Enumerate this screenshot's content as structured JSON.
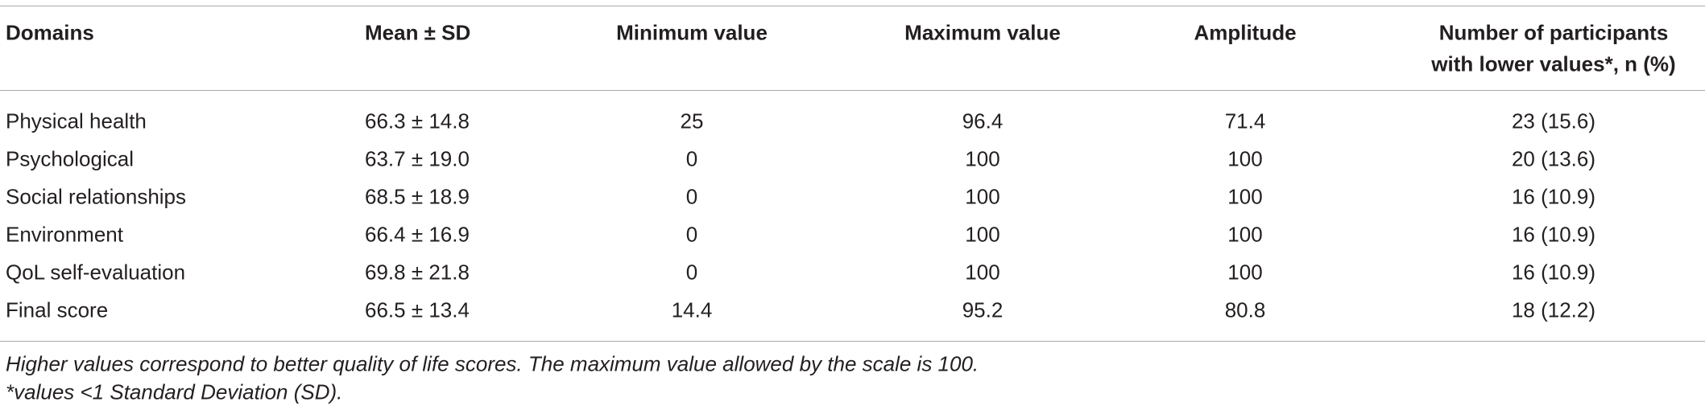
{
  "table": {
    "header": [
      [
        "Domains"
      ],
      [
        "Mean ± SD"
      ],
      [
        "Minimum value"
      ],
      [
        "Maximum value"
      ],
      [
        "Amplitude"
      ],
      [
        "Number of participants",
        "with lower values*, n (%)"
      ]
    ],
    "rows": [
      [
        "Physical health",
        "66.3 ± 14.8",
        "25",
        "96.4",
        "71.4",
        "23 (15.6)"
      ],
      [
        "Psychological",
        "63.7 ± 19.0",
        "0",
        "100",
        "100",
        "20 (13.6)"
      ],
      [
        "Social relationships",
        "68.5 ± 18.9",
        "0",
        "100",
        "100",
        "16 (10.9)"
      ],
      [
        "Environment",
        "66.4 ± 16.9",
        "0",
        "100",
        "100",
        "16 (10.9)"
      ],
      [
        "QoL self-evaluation",
        "69.8 ± 21.8",
        "0",
        "100",
        "100",
        "16 (10.9)"
      ],
      [
        "Final score",
        "66.5 ± 13.4",
        "14.4",
        "95.2",
        "80.8",
        "18 (12.2)"
      ]
    ],
    "footnotes": [
      "Higher values correspond to better quality of life scores. The maximum value allowed by the scale is 100.",
      "*values <1 Standard Deviation (SD)."
    ]
  }
}
